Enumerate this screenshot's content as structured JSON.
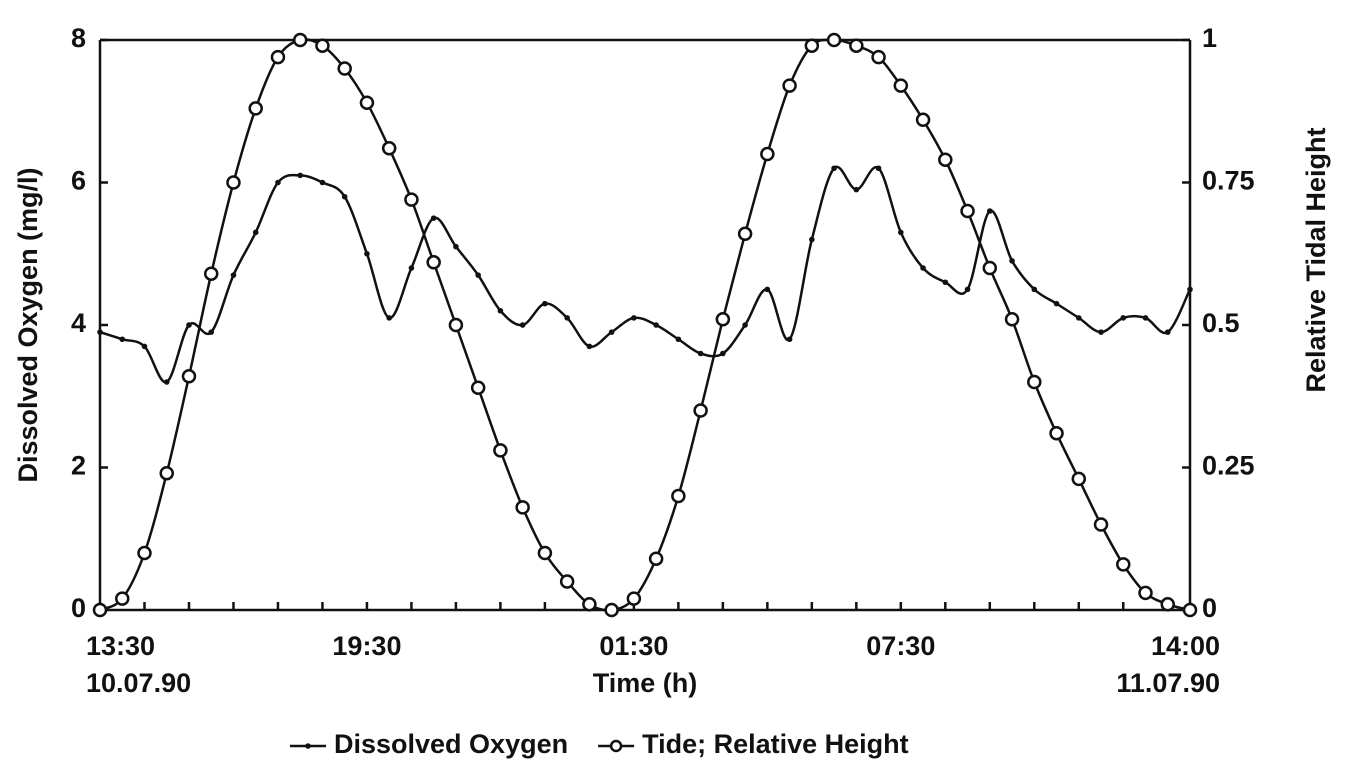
{
  "chart_data": {
    "type": "line",
    "x_label": "Time (h)",
    "y_label": "Dissolved Oxygen (mg/l)",
    "y2_label": "Relative Tidal Height",
    "categories": [
      "13:30 10.07.90",
      null,
      null,
      null,
      null,
      null,
      null,
      null,
      null,
      null,
      null,
      null,
      "19:30",
      null,
      null,
      null,
      null,
      null,
      null,
      null,
      null,
      null,
      null,
      null,
      "01:30",
      null,
      null,
      null,
      null,
      null,
      null,
      null,
      null,
      null,
      null,
      null,
      "07:30",
      null,
      null,
      null,
      null,
      null,
      null,
      null,
      null,
      null,
      null,
      null,
      null,
      "14:00 11.07.90"
    ],
    "ylim": [
      0,
      8
    ],
    "yticks": [
      0,
      2,
      4,
      6,
      8
    ],
    "y2lim": [
      0,
      1
    ],
    "y2ticks": [
      0,
      0.25,
      0.5,
      0.75,
      1
    ],
    "series": [
      {
        "name": "Dissolved Oxygen",
        "color": "#111111",
        "marker": "dot",
        "values": [
          3.9,
          3.8,
          3.7,
          3.2,
          4.0,
          3.9,
          4.7,
          5.3,
          6.0,
          6.1,
          6.0,
          5.8,
          5.0,
          4.1,
          4.8,
          5.5,
          5.1,
          4.7,
          4.2,
          4.0,
          4.3,
          4.1,
          3.7,
          3.9,
          4.1,
          4.0,
          3.8,
          3.6,
          3.6,
          4.0,
          4.5,
          3.8,
          5.2,
          6.2,
          5.9,
          6.2,
          5.3,
          4.8,
          4.6,
          4.5,
          5.6,
          4.9,
          4.5,
          4.3,
          4.1,
          3.9,
          4.1,
          4.1,
          3.9,
          4.5
        ]
      },
      {
        "name": "Tide; Relative Height",
        "color": "#111111",
        "marker": "circle",
        "axis": "y2",
        "values": [
          0,
          0.02,
          0.1,
          0.24,
          0.41,
          0.59,
          0.75,
          0.88,
          0.97,
          1.0,
          0.99,
          0.95,
          0.89,
          0.81,
          0.72,
          0.61,
          0.5,
          0.39,
          0.28,
          0.18,
          0.1,
          0.05,
          0.01,
          0,
          0.02,
          0.09,
          0.2,
          0.35,
          0.51,
          0.66,
          0.8,
          0.92,
          0.99,
          1.0,
          0.99,
          0.97,
          0.92,
          0.86,
          0.79,
          0.7,
          0.6,
          0.51,
          0.4,
          0.31,
          0.23,
          0.15,
          0.08,
          0.03,
          0.01,
          0
        ]
      }
    ]
  }
}
